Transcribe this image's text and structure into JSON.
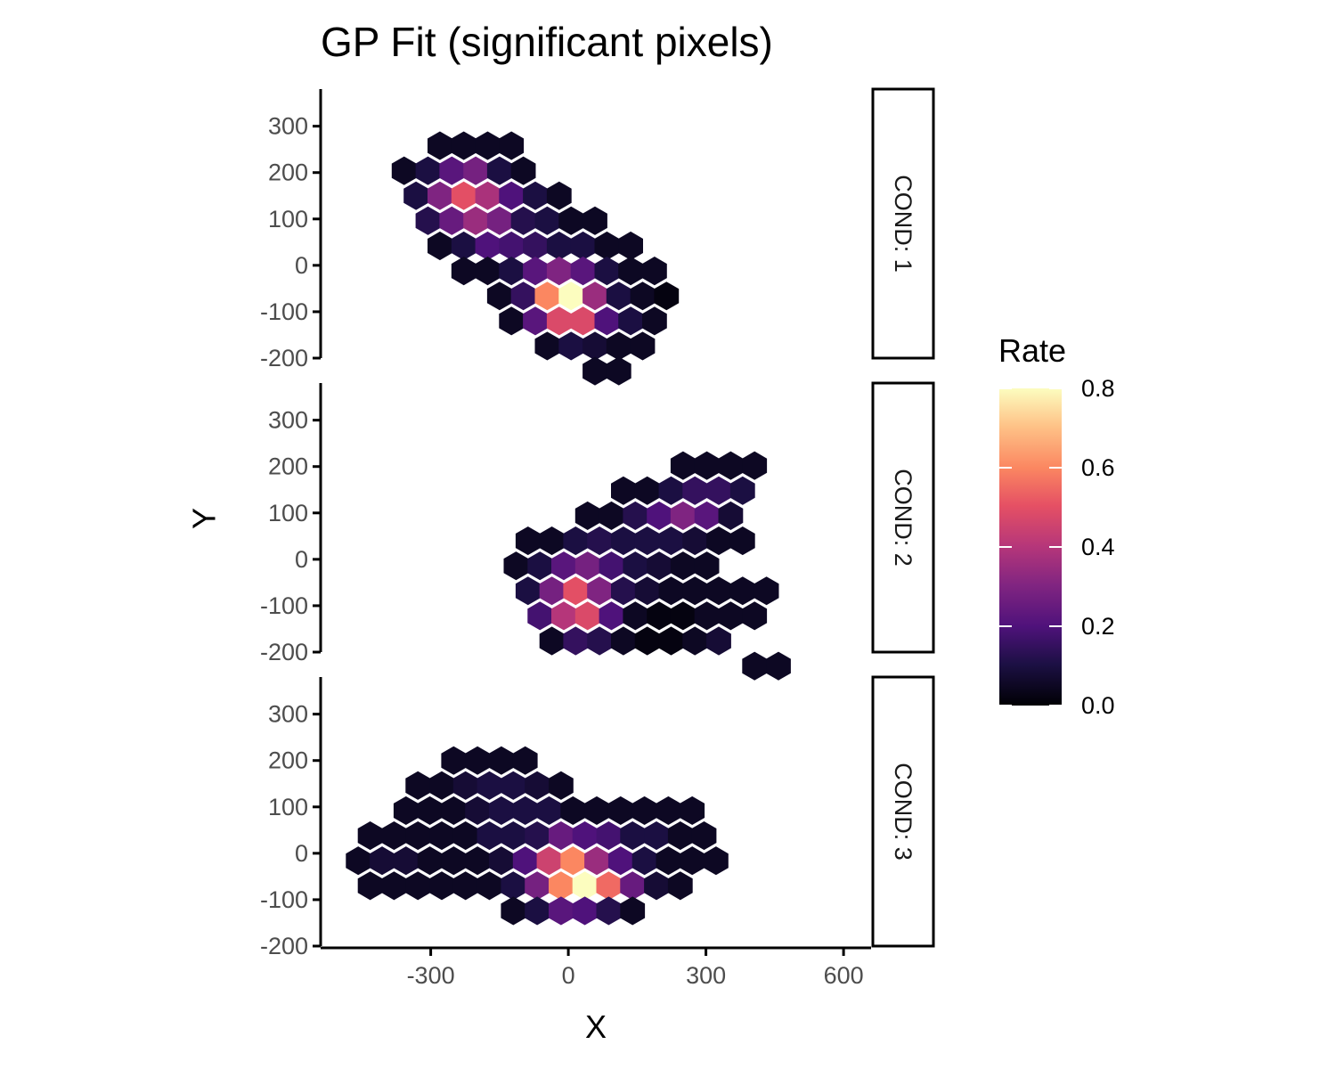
{
  "chart_data": {
    "type": "heatmap",
    "title": "GP Fit (significant pixels)",
    "xlabel": "X",
    "ylabel": "Y",
    "xlim": [
      -540,
      660
    ],
    "ylim": [
      -200,
      380
    ],
    "x_ticks": [
      -300,
      0,
      300,
      600
    ],
    "x_tick_labels": [
      "-300",
      "0",
      "300",
      "600"
    ],
    "y_ticks": [
      -200,
      -100,
      0,
      100,
      200,
      300
    ],
    "y_tick_labels": [
      "-200",
      "-100",
      "0",
      "100",
      "200",
      "300"
    ],
    "grid": false,
    "legend": {
      "title": "Rate",
      "position": "right",
      "range": [
        0,
        0.8
      ],
      "ticks": [
        0.0,
        0.2,
        0.4,
        0.6,
        0.8
      ],
      "tick_labels": [
        "0.0",
        "0.2",
        "0.4",
        "0.6",
        "0.8"
      ],
      "colormap": "magma"
    },
    "hex_spacing": {
      "dx": 52,
      "dy": 54
    },
    "panels": [
      {
        "label": "COND: 1",
        "rows": [
          {
            "y": 258,
            "x0": -280,
            "values": [
              0.05,
              0.05,
              0.05,
              0.05
            ]
          },
          {
            "y": 204,
            "x0": -358,
            "values": [
              0.05,
              0.1,
              0.22,
              0.28,
              0.1,
              0.05
            ]
          },
          {
            "y": 150,
            "x0": -332,
            "values": [
              0.1,
              0.3,
              0.5,
              0.38,
              0.2,
              0.1,
              0.05
            ]
          },
          {
            "y": 96,
            "x0": -306,
            "values": [
              0.12,
              0.25,
              0.35,
              0.28,
              0.12,
              0.1,
              0.05,
              0.05
            ]
          },
          {
            "y": 42,
            "x0": -280,
            "values": [
              0.05,
              0.1,
              0.2,
              0.18,
              0.15,
              0.1,
              0.1,
              0.05,
              0.05
            ]
          },
          {
            "y": -12,
            "x0": -228,
            "values": [
              0.05,
              0.05,
              0.1,
              0.22,
              0.3,
              0.22,
              0.1,
              0.05,
              0.05
            ]
          },
          {
            "y": -66,
            "x0": -150,
            "values": [
              0.05,
              0.15,
              0.6,
              0.8,
              0.35,
              0.1,
              0.05,
              0.02
            ]
          },
          {
            "y": -120,
            "x0": -124,
            "values": [
              0.05,
              0.22,
              0.48,
              0.48,
              0.2,
              0.1,
              0.05
            ]
          },
          {
            "y": -174,
            "x0": -46,
            "values": [
              0.05,
              0.1,
              0.08,
              0.05,
              0.05
            ]
          },
          {
            "y": -228,
            "x0": 58,
            "values": [
              0.05,
              0.05
            ]
          }
        ]
      },
      {
        "label": "COND: 2",
        "rows": [
          {
            "y": 202,
            "x0": 250,
            "values": [
              0.05,
              0.05,
              0.05,
              0.05
            ]
          },
          {
            "y": 148,
            "x0": 120,
            "values": [
              0.05,
              0.05,
              0.1,
              0.15,
              0.15,
              0.1
            ]
          },
          {
            "y": 94,
            "x0": 42,
            "values": [
              0.05,
              0.05,
              0.12,
              0.2,
              0.3,
              0.22,
              0.08
            ]
          },
          {
            "y": 40,
            "x0": -88,
            "values": [
              0.05,
              0.05,
              0.1,
              0.12,
              0.1,
              0.1,
              0.1,
              0.08,
              0.05,
              0.05
            ]
          },
          {
            "y": -14,
            "x0": -114,
            "values": [
              0.05,
              0.1,
              0.22,
              0.28,
              0.18,
              0.1,
              0.08,
              0.05,
              0.05
            ]
          },
          {
            "y": -68,
            "x0": -88,
            "values": [
              0.1,
              0.28,
              0.5,
              0.3,
              0.12,
              0.08,
              0.05,
              0.05,
              0.05,
              0.05,
              0.05
            ]
          },
          {
            "y": -122,
            "x0": -62,
            "values": [
              0.18,
              0.4,
              0.48,
              0.2,
              0.05,
              0.02,
              0.02,
              0.05,
              0.05,
              0.05
            ]
          },
          {
            "y": -176,
            "x0": -36,
            "values": [
              0.05,
              0.15,
              0.12,
              0.05,
              0.02,
              0.02,
              0.05,
              0.08
            ]
          },
          {
            "y": -230,
            "x0": 406,
            "values": [
              0.05,
              0.05
            ]
          }
        ]
      },
      {
        "label": "COND: 3",
        "rows": [
          {
            "y": 200,
            "x0": -250,
            "values": [
              0.05,
              0.05,
              0.05,
              0.05
            ]
          },
          {
            "y": 146,
            "x0": -328,
            "values": [
              0.05,
              0.05,
              0.08,
              0.1,
              0.1,
              0.08,
              0.05
            ]
          },
          {
            "y": 92,
            "x0": -354,
            "values": [
              0.05,
              0.05,
              0.05,
              0.08,
              0.1,
              0.1,
              0.1,
              0.05,
              0.05,
              0.05,
              0.05,
              0.05,
              0.05
            ]
          },
          {
            "y": 38,
            "x0": -432,
            "values": [
              0.05,
              0.05,
              0.05,
              0.05,
              0.05,
              0.1,
              0.1,
              0.12,
              0.25,
              0.2,
              0.18,
              0.1,
              0.1,
              0.05,
              0.05
            ]
          },
          {
            "y": -16,
            "x0": -458,
            "values": [
              0.05,
              0.08,
              0.08,
              0.05,
              0.05,
              0.05,
              0.08,
              0.2,
              0.45,
              0.6,
              0.35,
              0.2,
              0.1,
              0.05,
              0.05,
              0.05
            ]
          },
          {
            "y": -70,
            "x0": -432,
            "values": [
              0.05,
              0.05,
              0.05,
              0.05,
              0.05,
              0.05,
              0.1,
              0.28,
              0.6,
              0.8,
              0.55,
              0.25,
              0.08,
              0.05
            ]
          },
          {
            "y": -124,
            "x0": -120,
            "values": [
              0.05,
              0.1,
              0.22,
              0.2,
              0.12,
              0.05
            ]
          }
        ]
      }
    ]
  }
}
